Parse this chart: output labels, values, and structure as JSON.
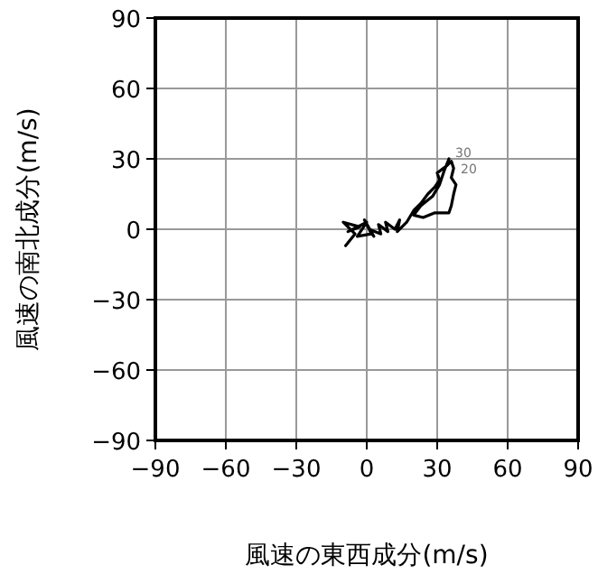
{
  "chart_data": {
    "type": "line",
    "xlabel": "風速の東西成分(m/s)",
    "ylabel": "風速の南北成分(m/s)",
    "color": "#000000",
    "grid": true,
    "marker": "none",
    "line_style": "solid",
    "xlim": [
      -90,
      90
    ],
    "ylim": [
      -90,
      90
    ],
    "xticks": [
      {
        "value": -90,
        "label": "−90"
      },
      {
        "value": -60,
        "label": "−60"
      },
      {
        "value": -30,
        "label": "−30"
      },
      0,
      30,
      60,
      90
    ],
    "yticks": [
      {
        "value": -90,
        "label": "−90"
      },
      {
        "value": -60,
        "label": "−60"
      },
      {
        "value": -30,
        "label": "−30"
      },
      0,
      30,
      60,
      90
    ],
    "x": [
      -9,
      -5,
      -10,
      -3,
      -8,
      0,
      -4,
      2,
      -1,
      3,
      1,
      6,
      5,
      9,
      8,
      12,
      14,
      13,
      17,
      20,
      23,
      26,
      29,
      31,
      30,
      34,
      36,
      37,
      36,
      38,
      37,
      36,
      35,
      29,
      24,
      20,
      23,
      28,
      31,
      33,
      35
    ],
    "values": [
      -7,
      -2,
      3,
      1,
      -1,
      3,
      -3,
      -2,
      4,
      -3,
      0,
      -2,
      2,
      -1,
      3,
      0,
      4,
      -1,
      3,
      8,
      11,
      15,
      18,
      21,
      24,
      27,
      29,
      26,
      22,
      19,
      15,
      10,
      7,
      7,
      5,
      6,
      10,
      14,
      19,
      25,
      30
    ],
    "annotations": [
      "30",
      "20"
    ]
  }
}
